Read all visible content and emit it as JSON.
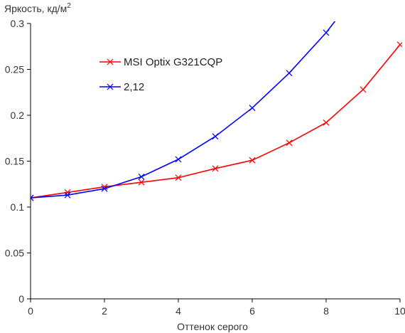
{
  "chart_data": {
    "type": "line",
    "ylabel": "Яркость, кд/м",
    "ylabel_sup": "2",
    "xlabel": "Оттенок серого",
    "xlim": [
      0,
      10
    ],
    "ylim": [
      0,
      0.3
    ],
    "x_ticks": [
      "0",
      "2",
      "4",
      "6",
      "8",
      "10"
    ],
    "y_ticks": [
      "0",
      "0.05",
      "0.1",
      "0.15",
      "0.2",
      "0.25",
      "0.3"
    ],
    "grid": false,
    "legend_position": "top-left",
    "series": [
      {
        "name": "MSI Optix G321CQP",
        "color": "#ff0000",
        "marker": "x",
        "x": [
          0,
          1,
          2,
          3,
          4,
          5,
          6,
          7,
          8,
          9,
          10
        ],
        "y": [
          0.11,
          0.116,
          0.122,
          0.127,
          0.132,
          0.142,
          0.151,
          0.17,
          0.192,
          0.228,
          0.277
        ]
      },
      {
        "name": "2,12",
        "color": "#0000ff",
        "marker": "x",
        "x": [
          0,
          1,
          2,
          3,
          4,
          5,
          6,
          7,
          8,
          8.27
        ],
        "y": [
          0.11,
          0.113,
          0.12,
          0.133,
          0.152,
          0.177,
          0.208,
          0.246,
          0.29,
          0.304
        ]
      }
    ]
  }
}
